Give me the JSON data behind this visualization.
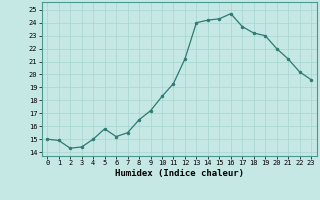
{
  "x": [
    0,
    1,
    2,
    3,
    4,
    5,
    6,
    7,
    8,
    9,
    10,
    11,
    12,
    13,
    14,
    15,
    16,
    17,
    18,
    19,
    20,
    21,
    22,
    23
  ],
  "y": [
    15.0,
    14.9,
    14.3,
    14.4,
    15.0,
    15.8,
    15.2,
    15.5,
    16.5,
    17.2,
    18.3,
    19.3,
    21.2,
    24.0,
    24.2,
    24.3,
    24.7,
    23.7,
    23.2,
    23.0,
    22.0,
    21.2,
    20.2,
    19.6
  ],
  "line_color": "#2d7a72",
  "marker_color": "#2d7a72",
  "bg_color": "#c5e8e5",
  "grid_color": "#a8d4d0",
  "xlabel": "Humidex (Indice chaleur)",
  "ylabel_ticks": [
    14,
    15,
    16,
    17,
    18,
    19,
    20,
    21,
    22,
    23,
    24,
    25
  ],
  "ylim": [
    13.7,
    25.6
  ],
  "xlim": [
    -0.5,
    23.5
  ]
}
